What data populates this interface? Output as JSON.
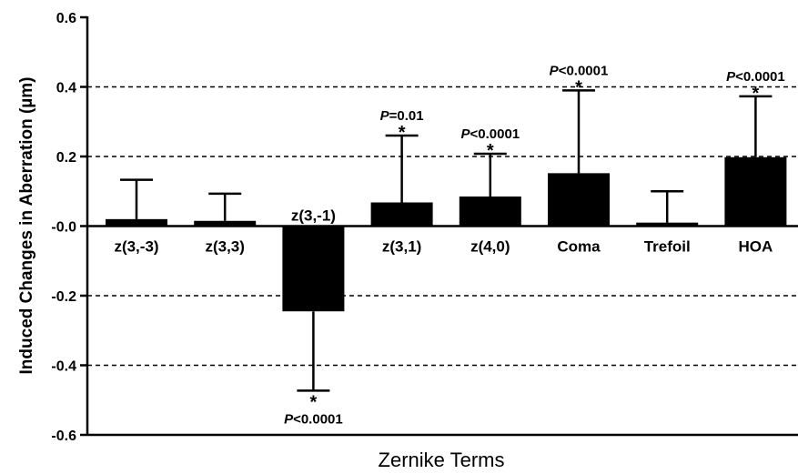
{
  "chart_data": {
    "type": "bar",
    "xlabel": "Zernike Terms",
    "ylabel": "Induced Changes in Aberration (µm)",
    "ylim": [
      -0.6,
      0.6
    ],
    "yticks": [
      {
        "value": 0.6,
        "label": "0.6"
      },
      {
        "value": 0.4,
        "label": "0.4"
      },
      {
        "value": 0.2,
        "label": "0.2"
      },
      {
        "value": 0.0,
        "label": "-0.0"
      },
      {
        "value": -0.2,
        "label": "-0.2"
      },
      {
        "value": -0.4,
        "label": "-0.4"
      },
      {
        "value": -0.6,
        "label": "-0.6"
      }
    ],
    "gridlines_dashed": [
      0.4,
      0.2,
      -0.2,
      -0.4
    ],
    "categories": [
      "z(3,-3)",
      "z(3,3)",
      "z(3,-1)",
      "z(3,1)",
      "z(4,0)",
      "Coma",
      "Trefoil",
      "HOA"
    ],
    "values": [
      0.02,
      0.015,
      -0.245,
      0.068,
      0.085,
      0.152,
      0.01,
      0.198
    ],
    "error": [
      0.113,
      0.078,
      0.228,
      0.192,
      0.123,
      0.238,
      0.09,
      0.175
    ],
    "annotations": [
      {
        "category": "z(3,-1)",
        "star": "*",
        "p_italic": "P",
        "p_rest": "<0.0001",
        "position": "below"
      },
      {
        "category": "z(3,1)",
        "star": "*",
        "p_italic": "P",
        "p_rest": "=0.01",
        "position": "above"
      },
      {
        "category": "z(4,0)",
        "star": "*",
        "p_italic": "P",
        "p_rest": "<0.0001",
        "position": "above"
      },
      {
        "category": "Coma",
        "star": "*",
        "p_italic": "P",
        "p_rest": "<0.0001",
        "position": "above"
      },
      {
        "category": "HOA",
        "star": "*",
        "p_italic": "P",
        "p_rest": "<0.0001",
        "position": "above"
      }
    ]
  }
}
